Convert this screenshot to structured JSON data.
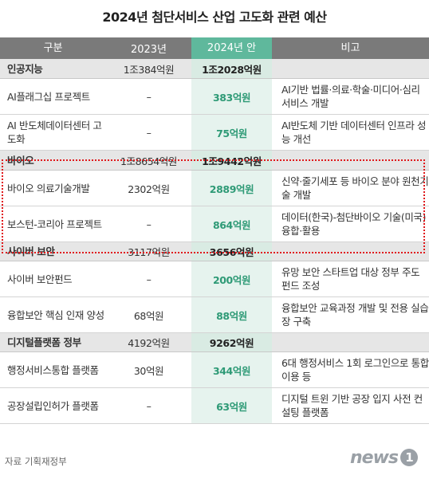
{
  "title": "2024년 첨단서비스 산업 고도화 관련 예산",
  "headers": [
    "구분",
    "2023년",
    "2024년 안",
    "비고"
  ],
  "rows": [
    {
      "type": "cat",
      "name": "인공지능",
      "y2023": "1조384억원",
      "y2024": "1조2028억원",
      "note": ""
    },
    {
      "type": "item",
      "name": "AI플래그십 프로젝트",
      "y2023": "–",
      "y2024": "383억원",
      "note": "AI기반 법률·의료·학술·미디어·심리 서비스 개발"
    },
    {
      "type": "item",
      "name": "AI 반도체데이터센터 고도화",
      "y2023": "–",
      "y2024": "75억원",
      "note": "AI반도체 기반 데이터센터 인프라 성능 개선"
    },
    {
      "type": "cat",
      "name": "바이오",
      "y2023": "1조8654억원",
      "y2024": "1조9442억원",
      "note": ""
    },
    {
      "type": "item",
      "name": "바이오 의료기술개발",
      "y2023": "2302억원",
      "y2024": "2889억원",
      "note": "신약·줄기세포 등 바이오 분야 원천기술 개발"
    },
    {
      "type": "item",
      "name": "보스턴-코리아 프로젝트",
      "y2023": "–",
      "y2024": "864억원",
      "note": "데이터(한국)-첨단바이오 기술(미국) 융합·활용"
    },
    {
      "type": "cat",
      "name": "사이버 보안",
      "y2023": "3117억원",
      "y2024": "3656억원",
      "note": ""
    },
    {
      "type": "item",
      "name": "사이버 보안펀드",
      "y2023": "–",
      "y2024": "200억원",
      "note": "유망 보안 스타트업 대상 정부 주도 펀드 조성"
    },
    {
      "type": "item",
      "name": "융합보안 핵심 인재 양성",
      "y2023": "68억원",
      "y2024": "88억원",
      "note": "융합보안 교육과정 개발 및 전용 실습장 구축"
    },
    {
      "type": "cat",
      "name": "디지털플랫폼 정부",
      "y2023": "4192억원",
      "y2024": "9262억원",
      "note": ""
    },
    {
      "type": "item",
      "name": "행정서비스통합 플랫폼",
      "y2023": "30억원",
      "y2024": "344억원",
      "note": "6대 행정서비스 1회 로그인으로 통합 이용 등"
    },
    {
      "type": "item",
      "name": "공장설립인허가 플랫폼",
      "y2023": "–",
      "y2024": "63억원",
      "note": "디지털 트윈 기반 공장 입지 사전 컨설팅 플랫폼"
    }
  ],
  "source": "자료 기획재정부",
  "logo": "news",
  "logo_mark": "1"
}
